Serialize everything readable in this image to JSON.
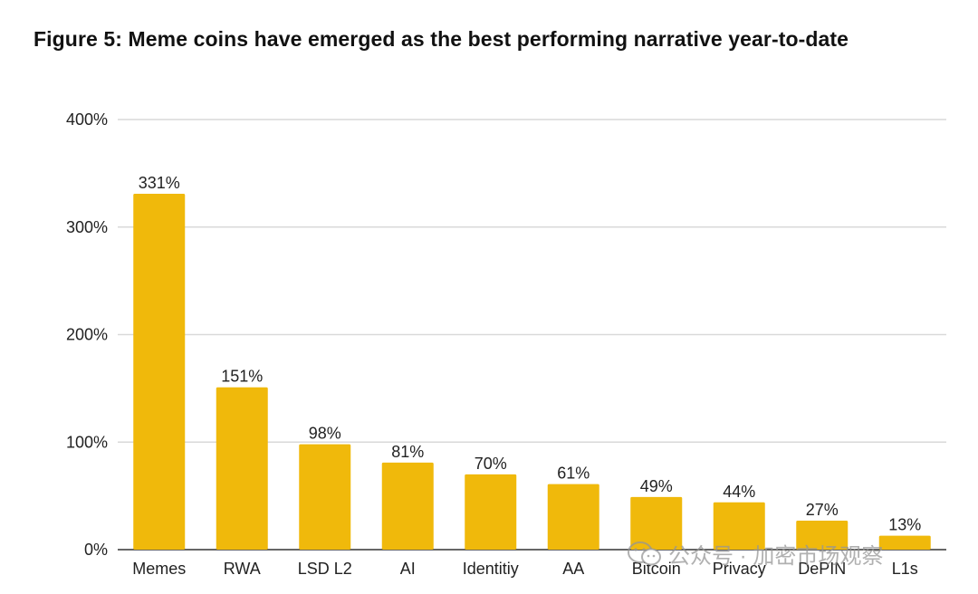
{
  "title": "Figure 5: Meme coins have emerged as the best performing narrative year-to-date",
  "watermark": {
    "text": "公众号 · 加密市场观察",
    "icon": "wechat-icon"
  },
  "chart_data": {
    "type": "bar",
    "title": "Figure 5: Meme coins have emerged as the best performing narrative year-to-date",
    "xlabel": "",
    "ylabel": "",
    "categories": [
      "Memes",
      "RWA",
      "LSD L2",
      "AI",
      "Identitiy",
      "AA",
      "Bitcoin",
      "Privacy",
      "DePIN",
      "L1s"
    ],
    "values": [
      331,
      151,
      98,
      81,
      70,
      61,
      49,
      44,
      27,
      13
    ],
    "data_labels": [
      "331%",
      "151%",
      "98%",
      "81%",
      "70%",
      "61%",
      "49%",
      "44%",
      "27%",
      "13%"
    ],
    "ylim": [
      0,
      400
    ],
    "yticks": [
      0,
      100,
      200,
      300,
      400
    ],
    "ytick_labels": [
      "0%",
      "100%",
      "200%",
      "300%",
      "400%"
    ],
    "grid": true,
    "legend": "none",
    "colors": {
      "bar": "#F0B90B",
      "grid": "#d9d9d9",
      "axis": "#333333",
      "text": "#222222"
    }
  }
}
